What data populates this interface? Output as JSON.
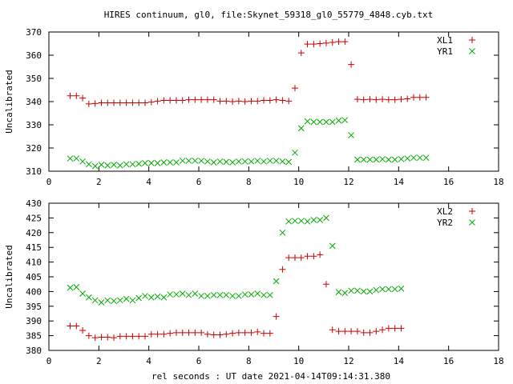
{
  "chart_data": {
    "type": "scatter",
    "title": "HIRES continuum, gl0, file:Skynet_59318_gl0_55779_4848.cyb.txt",
    "xlabel": "rel seconds : UT date 2021-04-14T09:14:31.380",
    "colors": {
      "XL": "#cc0000",
      "YR": "#00aa00"
    },
    "panels": [
      {
        "ylabel": "Uncalibrated",
        "xlim": [
          0,
          18
        ],
        "ylim": [
          310,
          370
        ],
        "xticks": [
          "0",
          "2",
          "4",
          "6",
          "8",
          "10",
          "12",
          "14",
          "16",
          "18"
        ],
        "yticks": [
          "310",
          "320",
          "330",
          "340",
          "350",
          "360",
          "370"
        ],
        "legend_position": "top-right",
        "series": [
          {
            "name": "XL1",
            "marker": "plus",
            "color": "#cc0000",
            "points": [
              [
                0.85,
                342.5
              ],
              [
                1.1,
                342.5
              ],
              [
                1.35,
                341.5
              ],
              [
                1.6,
                339.0
              ],
              [
                1.85,
                339.2
              ],
              [
                2.1,
                339.5
              ],
              [
                2.35,
                339.5
              ],
              [
                2.6,
                339.5
              ],
              [
                2.85,
                339.5
              ],
              [
                3.1,
                339.5
              ],
              [
                3.35,
                339.5
              ],
              [
                3.6,
                339.5
              ],
              [
                3.85,
                339.5
              ],
              [
                4.1,
                339.8
              ],
              [
                4.35,
                340.2
              ],
              [
                4.6,
                340.5
              ],
              [
                4.85,
                340.5
              ],
              [
                5.1,
                340.5
              ],
              [
                5.35,
                340.5
              ],
              [
                5.6,
                340.8
              ],
              [
                5.85,
                340.8
              ],
              [
                6.1,
                340.8
              ],
              [
                6.35,
                340.8
              ],
              [
                6.6,
                340.8
              ],
              [
                6.85,
                340.2
              ],
              [
                7.1,
                340.2
              ],
              [
                7.35,
                340.0
              ],
              [
                7.6,
                340.2
              ],
              [
                7.85,
                340.0
              ],
              [
                8.1,
                340.2
              ],
              [
                8.35,
                340.2
              ],
              [
                8.6,
                340.5
              ],
              [
                8.85,
                340.5
              ],
              [
                9.1,
                340.8
              ],
              [
                9.35,
                340.5
              ],
              [
                9.6,
                340.2
              ],
              [
                9.85,
                345.8
              ],
              [
                10.1,
                361.0
              ],
              [
                10.35,
                364.8
              ],
              [
                10.6,
                364.8
              ],
              [
                10.85,
                365.0
              ],
              [
                11.1,
                365.2
              ],
              [
                11.35,
                365.5
              ],
              [
                11.6,
                365.8
              ],
              [
                11.85,
                365.8
              ],
              [
                12.1,
                356.0
              ],
              [
                12.35,
                341.0
              ],
              [
                12.6,
                340.8
              ],
              [
                12.85,
                341.0
              ],
              [
                13.1,
                340.8
              ],
              [
                13.35,
                341.0
              ],
              [
                13.6,
                340.8
              ],
              [
                13.85,
                340.8
              ],
              [
                14.1,
                341.0
              ],
              [
                14.35,
                341.2
              ],
              [
                14.6,
                341.8
              ],
              [
                14.85,
                341.8
              ],
              [
                15.1,
                341.8
              ]
            ]
          },
          {
            "name": "YR1",
            "marker": "cross",
            "color": "#00aa00",
            "points": [
              [
                0.85,
                315.5
              ],
              [
                1.1,
                315.5
              ],
              [
                1.35,
                314.2
              ],
              [
                1.6,
                313.0
              ],
              [
                1.85,
                312.2
              ],
              [
                2.1,
                312.8
              ],
              [
                2.35,
                312.5
              ],
              [
                2.6,
                312.8
              ],
              [
                2.85,
                312.5
              ],
              [
                3.1,
                313.0
              ],
              [
                3.35,
                313.0
              ],
              [
                3.6,
                313.2
              ],
              [
                3.85,
                313.5
              ],
              [
                4.1,
                313.5
              ],
              [
                4.35,
                313.5
              ],
              [
                4.6,
                313.8
              ],
              [
                4.85,
                313.8
              ],
              [
                5.1,
                313.8
              ],
              [
                5.35,
                314.5
              ],
              [
                5.6,
                314.5
              ],
              [
                5.85,
                314.5
              ],
              [
                6.1,
                314.5
              ],
              [
                6.35,
                314.2
              ],
              [
                6.6,
                313.8
              ],
              [
                6.85,
                314.2
              ],
              [
                7.1,
                314.0
              ],
              [
                7.35,
                313.8
              ],
              [
                7.6,
                314.2
              ],
              [
                7.85,
                314.2
              ],
              [
                8.1,
                314.2
              ],
              [
                8.35,
                314.5
              ],
              [
                8.6,
                314.2
              ],
              [
                8.85,
                314.5
              ],
              [
                9.1,
                314.5
              ],
              [
                9.35,
                314.2
              ],
              [
                9.6,
                314.0
              ],
              [
                9.85,
                318.0
              ],
              [
                10.1,
                328.5
              ],
              [
                10.35,
                331.5
              ],
              [
                10.6,
                331.2
              ],
              [
                10.85,
                331.2
              ],
              [
                11.1,
                331.2
              ],
              [
                11.35,
                331.2
              ],
              [
                11.6,
                331.8
              ],
              [
                11.85,
                332.0
              ],
              [
                12.1,
                325.5
              ],
              [
                12.35,
                315.0
              ],
              [
                12.6,
                315.0
              ],
              [
                12.85,
                315.0
              ],
              [
                13.1,
                315.0
              ],
              [
                13.35,
                315.2
              ],
              [
                13.6,
                315.0
              ],
              [
                13.85,
                315.0
              ],
              [
                14.1,
                315.2
              ],
              [
                14.35,
                315.5
              ],
              [
                14.6,
                315.8
              ],
              [
                14.85,
                315.8
              ],
              [
                15.1,
                315.8
              ]
            ]
          }
        ]
      },
      {
        "ylabel": "Uncalibrated",
        "xlim": [
          0,
          18
        ],
        "ylim": [
          380,
          430
        ],
        "xticks": [
          "0",
          "2",
          "4",
          "6",
          "8",
          "10",
          "12",
          "14",
          "16",
          "18"
        ],
        "yticks": [
          "380",
          "385",
          "390",
          "395",
          "400",
          "405",
          "410",
          "415",
          "420",
          "425",
          "430"
        ],
        "legend_position": "top-right",
        "series": [
          {
            "name": "XL2",
            "marker": "plus",
            "color": "#cc0000",
            "points": [
              [
                0.85,
                388.3
              ],
              [
                1.1,
                388.3
              ],
              [
                1.35,
                386.8
              ],
              [
                1.6,
                385.0
              ],
              [
                1.85,
                384.3
              ],
              [
                2.1,
                384.5
              ],
              [
                2.35,
                384.5
              ],
              [
                2.6,
                384.3
              ],
              [
                2.85,
                384.8
              ],
              [
                3.1,
                384.8
              ],
              [
                3.35,
                384.8
              ],
              [
                3.6,
                384.8
              ],
              [
                3.85,
                384.8
              ],
              [
                4.1,
                385.5
              ],
              [
                4.35,
                385.5
              ],
              [
                4.6,
                385.5
              ],
              [
                4.85,
                385.8
              ],
              [
                5.1,
                386.0
              ],
              [
                5.35,
                386.0
              ],
              [
                5.6,
                386.0
              ],
              [
                5.85,
                386.0
              ],
              [
                6.1,
                386.0
              ],
              [
                6.35,
                385.5
              ],
              [
                6.6,
                385.3
              ],
              [
                6.85,
                385.3
              ],
              [
                7.1,
                385.5
              ],
              [
                7.35,
                385.8
              ],
              [
                7.6,
                386.0
              ],
              [
                7.85,
                386.0
              ],
              [
                8.1,
                386.0
              ],
              [
                8.35,
                386.3
              ],
              [
                8.6,
                385.8
              ],
              [
                8.85,
                385.8
              ],
              [
                9.1,
                391.5
              ],
              [
                9.35,
                407.5
              ],
              [
                9.6,
                411.5
              ],
              [
                9.85,
                411.5
              ],
              [
                10.1,
                411.5
              ],
              [
                10.35,
                412.0
              ],
              [
                10.6,
                412.0
              ],
              [
                10.85,
                412.5
              ],
              [
                11.1,
                402.5
              ],
              [
                11.35,
                387.0
              ],
              [
                11.6,
                386.5
              ],
              [
                11.85,
                386.5
              ],
              [
                12.1,
                386.5
              ],
              [
                12.35,
                386.5
              ],
              [
                12.6,
                386.0
              ],
              [
                12.85,
                386.0
              ],
              [
                13.1,
                386.5
              ],
              [
                13.35,
                387.0
              ],
              [
                13.6,
                387.5
              ],
              [
                13.85,
                387.5
              ],
              [
                14.1,
                387.5
              ]
            ]
          },
          {
            "name": "YR2",
            "marker": "cross",
            "color": "#00aa00",
            "points": [
              [
                0.85,
                401.3
              ],
              [
                1.1,
                401.5
              ],
              [
                1.35,
                399.3
              ],
              [
                1.6,
                398.0
              ],
              [
                1.85,
                397.0
              ],
              [
                2.1,
                396.3
              ],
              [
                2.35,
                397.0
              ],
              [
                2.6,
                396.8
              ],
              [
                2.85,
                397.0
              ],
              [
                3.1,
                397.5
              ],
              [
                3.35,
                397.0
              ],
              [
                3.6,
                397.8
              ],
              [
                3.85,
                398.5
              ],
              [
                4.1,
                398.0
              ],
              [
                4.35,
                398.3
              ],
              [
                4.6,
                398.0
              ],
              [
                4.85,
                399.0
              ],
              [
                5.1,
                399.0
              ],
              [
                5.35,
                399.3
              ],
              [
                5.6,
                398.8
              ],
              [
                5.85,
                399.3
              ],
              [
                6.1,
                398.5
              ],
              [
                6.35,
                398.5
              ],
              [
                6.6,
                398.8
              ],
              [
                6.85,
                398.8
              ],
              [
                7.1,
                398.8
              ],
              [
                7.35,
                398.5
              ],
              [
                7.6,
                398.5
              ],
              [
                7.85,
                399.0
              ],
              [
                8.1,
                399.0
              ],
              [
                8.35,
                399.3
              ],
              [
                8.6,
                398.8
              ],
              [
                8.85,
                398.8
              ],
              [
                9.1,
                403.5
              ],
              [
                9.35,
                420.0
              ],
              [
                9.6,
                423.8
              ],
              [
                9.85,
                424.0
              ],
              [
                10.1,
                424.0
              ],
              [
                10.35,
                423.8
              ],
              [
                10.6,
                424.3
              ],
              [
                10.85,
                424.3
              ],
              [
                11.1,
                425.0
              ],
              [
                11.35,
                415.5
              ],
              [
                11.6,
                399.8
              ],
              [
                11.85,
                399.5
              ],
              [
                12.1,
                400.3
              ],
              [
                12.35,
                400.3
              ],
              [
                12.6,
                400.0
              ],
              [
                12.85,
                400.0
              ],
              [
                13.1,
                400.5
              ],
              [
                13.35,
                400.8
              ],
              [
                13.6,
                400.8
              ],
              [
                13.85,
                400.8
              ],
              [
                14.1,
                401.0
              ]
            ]
          }
        ]
      }
    ]
  }
}
